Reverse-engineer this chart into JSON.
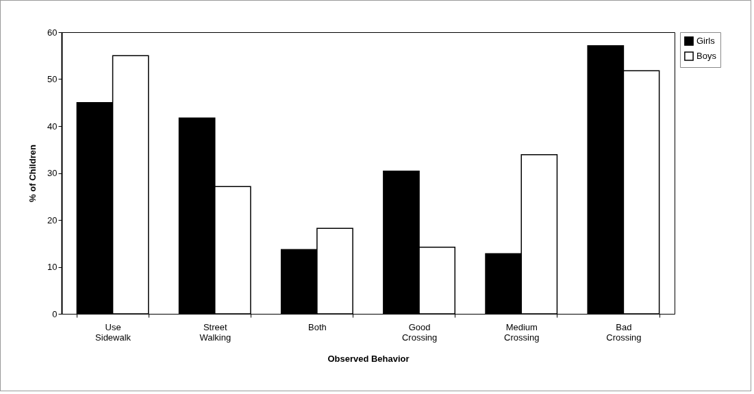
{
  "chart_data": {
    "type": "bar",
    "xlabel": "Observed Behavior",
    "ylabel": "% of Children",
    "categories": [
      "Use Sidewalk",
      "Street Walking",
      "Both",
      "Good Crossing",
      "Medium Crossing",
      "Bad Crossing"
    ],
    "series": [
      {
        "name": "Girls",
        "color": "#000000",
        "values": [
          45,
          41.7,
          13.7,
          30.4,
          12.8,
          57.1
        ]
      },
      {
        "name": "Boys",
        "color": "#ffffff",
        "values": [
          55,
          27.1,
          18.2,
          14.2,
          33.9,
          51.8
        ]
      }
    ],
    "ylim": [
      0,
      60
    ],
    "yticks": [
      0,
      10,
      20,
      30,
      40,
      50,
      60
    ],
    "grid": false,
    "legend": "right"
  }
}
